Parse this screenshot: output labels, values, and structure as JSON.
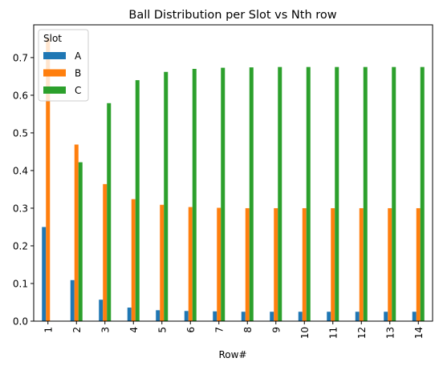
{
  "chart_data": {
    "type": "bar",
    "title": "Ball Distribution per Slot vs Nth row",
    "xlabel": "Row#",
    "ylabel": "",
    "categories": [
      "1",
      "2",
      "3",
      "4",
      "5",
      "6",
      "7",
      "8",
      "9",
      "10",
      "11",
      "12",
      "13",
      "14"
    ],
    "ylim": [
      0,
      0.787
    ],
    "yticks": [
      0.0,
      0.1,
      0.2,
      0.3,
      0.4,
      0.5,
      0.6,
      0.7
    ],
    "ytick_labels": [
      "0.0",
      "0.1",
      "0.2",
      "0.3",
      "0.4",
      "0.5",
      "0.6",
      "0.7"
    ],
    "grid": false,
    "legend": {
      "title": "Slot",
      "placement": "top-left"
    },
    "series": [
      {
        "name": "A",
        "color": "#1f77b4",
        "values": [
          0.25,
          0.109,
          0.057,
          0.036,
          0.029,
          0.027,
          0.026,
          0.025,
          0.025,
          0.025,
          0.025,
          0.025,
          0.025,
          0.025
        ]
      },
      {
        "name": "B",
        "color": "#ff7f0e",
        "values": [
          0.75,
          0.469,
          0.364,
          0.324,
          0.309,
          0.303,
          0.301,
          0.3,
          0.3,
          0.3,
          0.3,
          0.3,
          0.3,
          0.3
        ]
      },
      {
        "name": "C",
        "color": "#2ca02c",
        "values": [
          0.0,
          0.422,
          0.579,
          0.64,
          0.662,
          0.67,
          0.673,
          0.674,
          0.675,
          0.675,
          0.675,
          0.675,
          0.675,
          0.675
        ]
      }
    ]
  }
}
